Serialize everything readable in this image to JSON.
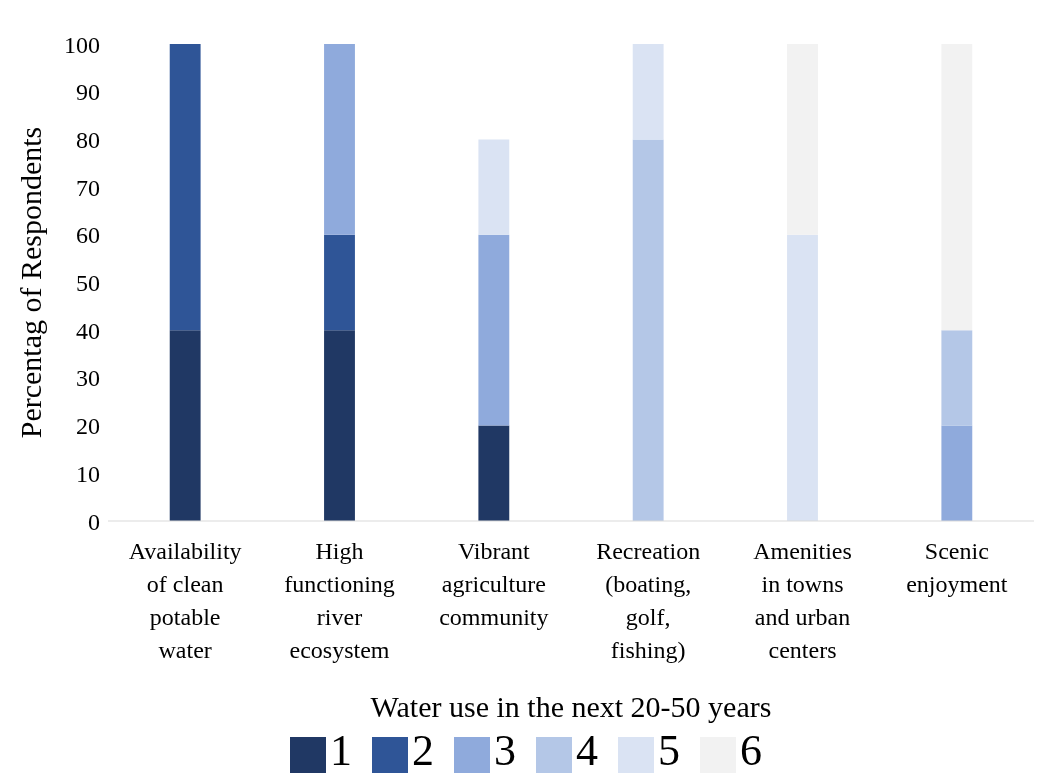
{
  "chart_data": {
    "type": "bar",
    "stacked": true,
    "xlabel": "Water use in the next 20-50 years",
    "ylabel": "Percentag of Respondents",
    "categories": [
      "Availability of clean potable water",
      "High functioning river ecosystem",
      "Vibrant agriculture community",
      "Recreation (boating, golf, fishing)",
      "Amenities in towns and urban centers",
      "Scenic enjoyment"
    ],
    "series": [
      {
        "name": "1",
        "color": "#203864",
        "values": [
          40,
          40,
          20,
          null,
          null,
          null
        ]
      },
      {
        "name": "2",
        "color": "#2f5597",
        "values": [
          60,
          20,
          null,
          null,
          null,
          null
        ]
      },
      {
        "name": "3",
        "color": "#8faadc",
        "values": [
          null,
          40,
          40,
          null,
          null,
          20
        ]
      },
      {
        "name": "4",
        "color": "#b4c7e7",
        "values": [
          null,
          null,
          null,
          80,
          null,
          20
        ]
      },
      {
        "name": "5",
        "color": "#dae3f3",
        "values": [
          null,
          null,
          20,
          20,
          60,
          null
        ]
      },
      {
        "name": "6",
        "color": "#f2f2f2",
        "values": [
          null,
          null,
          null,
          null,
          40,
          60
        ]
      }
    ],
    "ylim": [
      0,
      100
    ],
    "yticks": [
      0,
      10,
      20,
      30,
      40,
      50,
      60,
      70,
      80,
      90,
      100
    ],
    "grid": false,
    "legend": "bottom"
  }
}
